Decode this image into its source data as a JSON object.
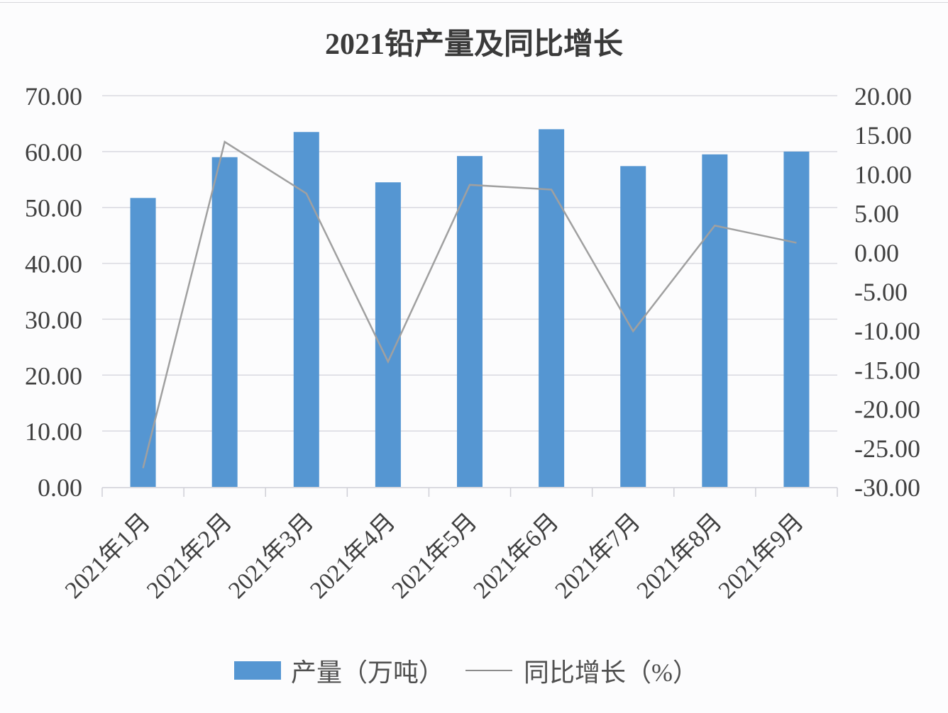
{
  "chart_data": {
    "type": "bar+line",
    "title": "2021铅产量及同比增长",
    "categories": [
      "2021年1月",
      "2021年2月",
      "2021年3月",
      "2021年4月",
      "2021年5月",
      "2021年6月",
      "2021年7月",
      "2021年8月",
      "2021年9月"
    ],
    "series": [
      {
        "name": "产量（万吨）",
        "type": "bar",
        "axis": "left",
        "color": "#5596d2",
        "values": [
          51.7,
          59.0,
          63.5,
          54.5,
          59.2,
          64.0,
          57.4,
          59.5,
          60.0
        ]
      },
      {
        "name": "同比增长（%）",
        "type": "line",
        "axis": "right",
        "color": "#a0a0a0",
        "values": [
          -27.6,
          14.1,
          7.5,
          -14.0,
          8.6,
          8.0,
          -10.1,
          3.4,
          1.2
        ]
      }
    ],
    "left_axis": {
      "ylim": [
        0,
        70
      ],
      "ticks": [
        "0.00",
        "10.00",
        "20.00",
        "30.00",
        "40.00",
        "50.00",
        "60.00",
        "70.00"
      ]
    },
    "right_axis": {
      "ylim": [
        -30,
        20
      ],
      "ticks": [
        "-30.00",
        "-25.00",
        "-20.00",
        "-15.00",
        "-10.00",
        "-5.00",
        "0.00",
        "5.00",
        "10.00",
        "15.00",
        "20.00"
      ]
    },
    "grid": true,
    "legend_position": "bottom"
  },
  "legend": {
    "bar_label": "产量（万吨）",
    "line_label": "同比增长（%）"
  }
}
